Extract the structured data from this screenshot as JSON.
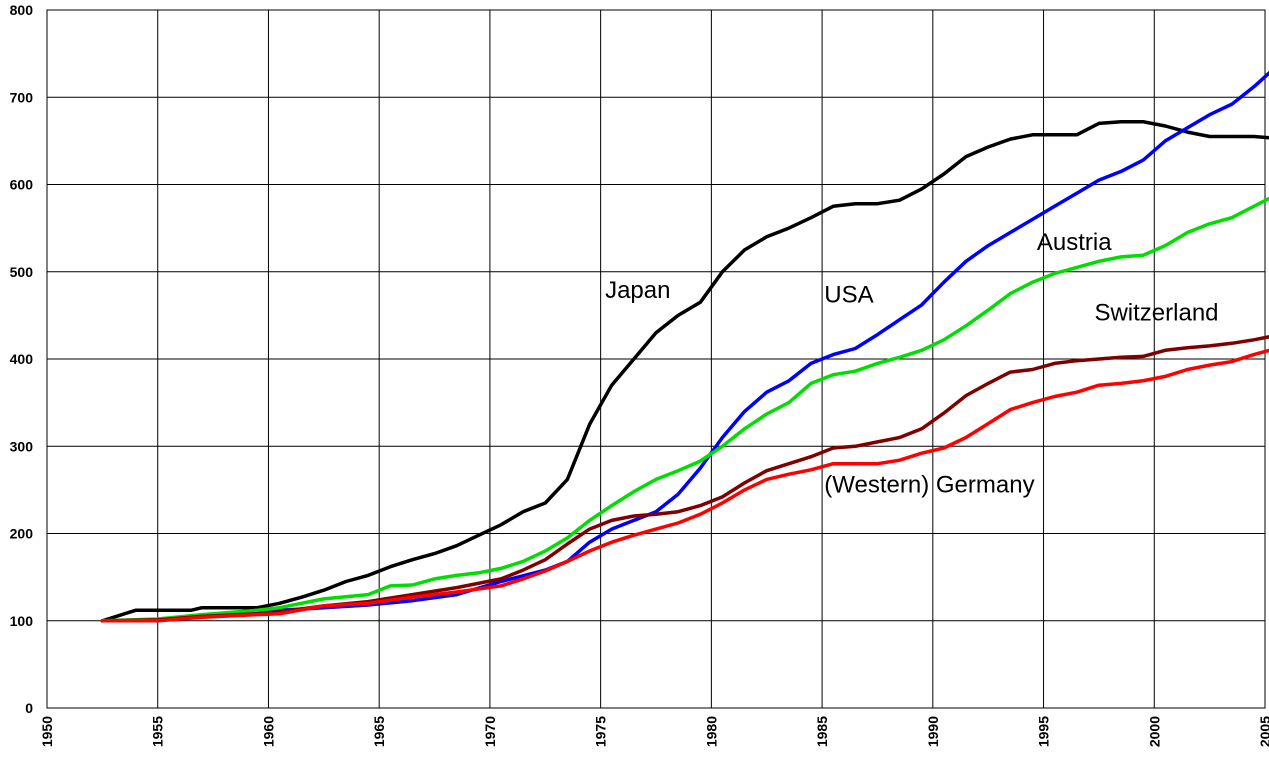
{
  "chart_data": {
    "type": "line",
    "title": "",
    "xlabel": "",
    "ylabel": "",
    "xlim": [
      1950,
      2005
    ],
    "ylim": [
      0,
      800
    ],
    "x_ticks": [
      1950,
      1955,
      1960,
      1965,
      1970,
      1975,
      1980,
      1985,
      1990,
      1995,
      2000,
      2005
    ],
    "y_ticks": [
      0,
      100,
      200,
      300,
      400,
      500,
      600,
      700,
      800
    ],
    "grid": true,
    "legend": "none",
    "series": [
      {
        "name": "Japan",
        "color": "#000000",
        "x": [
          1952.5,
          1954,
          1955,
          1956.5,
          1957,
          1958,
          1959.5,
          1960.5,
          1961.5,
          1962.5,
          1963.5,
          1964.5,
          1965.5,
          1966.5,
          1967.5,
          1968.5,
          1969.5,
          1970.5,
          1971.5,
          1972.5,
          1973.5,
          1974.5,
          1975.5,
          1976.5,
          1977.5,
          1978.5,
          1979.5,
          1980.5,
          1981.5,
          1982.5,
          1983.5,
          1984.5,
          1985.5,
          1986.5,
          1987.5,
          1988.5,
          1989.5,
          1990.5,
          1991.5,
          1992.5,
          1993.5,
          1994.5,
          1995.5,
          1996.5,
          1997.5,
          1998.5,
          1999.5,
          2000.5,
          2001.5,
          2002.5,
          2003.5,
          2004.5,
          2005.5
        ],
        "y": [
          100,
          112,
          112,
          112,
          115,
          115,
          115,
          120,
          127,
          135,
          145,
          152,
          162,
          170,
          177,
          186,
          198,
          210,
          225,
          235,
          262,
          325,
          370,
          400,
          430,
          450,
          465,
          500,
          525,
          540,
          550,
          562,
          575,
          578,
          578,
          582,
          595,
          612,
          632,
          643,
          652,
          657,
          657,
          657,
          670,
          672,
          672,
          667,
          660,
          655,
          655,
          655,
          653
        ]
      },
      {
        "name": "USA",
        "color": "#0000ff",
        "x": [
          1952.5,
          1955,
          1957,
          1959.5,
          1960.5,
          1962.5,
          1964.5,
          1966.5,
          1968.5,
          1970.5,
          1972.5,
          1973.5,
          1974.5,
          1975.5,
          1977.5,
          1978.5,
          1979.5,
          1980.5,
          1981.5,
          1982.5,
          1983.5,
          1984.5,
          1985.5,
          1986.5,
          1987.5,
          1988.5,
          1989.5,
          1990.5,
          1991.5,
          1992.5,
          1993.5,
          1994.5,
          1995.5,
          1996.5,
          1997.5,
          1998.5,
          1999.5,
          2000.5,
          2001.5,
          2002.5,
          2003.5,
          2004.5,
          2005.5
        ],
        "y": [
          100,
          100,
          105,
          110,
          112,
          115,
          118,
          123,
          130,
          145,
          158,
          168,
          190,
          205,
          225,
          245,
          275,
          310,
          340,
          362,
          375,
          395,
          405,
          412,
          428,
          445,
          462,
          488,
          512,
          530,
          545,
          560,
          575,
          590,
          605,
          615,
          628,
          650,
          665,
          680,
          692,
          712,
          735
        ]
      },
      {
        "name": "Austria",
        "color": "#00dd00",
        "x": [
          1952.5,
          1955,
          1957,
          1959.5,
          1960.5,
          1962.5,
          1964.5,
          1965.5,
          1966.5,
          1967.5,
          1968.5,
          1969.5,
          1970.5,
          1971.5,
          1972.5,
          1973.5,
          1974.5,
          1975.5,
          1976.5,
          1977.5,
          1978.5,
          1979.5,
          1980.5,
          1981.5,
          1982.5,
          1983.5,
          1984.5,
          1985.5,
          1986.5,
          1987.5,
          1988.5,
          1989.5,
          1990.5,
          1991.5,
          1992.5,
          1993.5,
          1994.5,
          1995.5,
          1996.5,
          1997.5,
          1998.5,
          1999.5,
          2000.5,
          2001.5,
          2002.5,
          2003.5,
          2004.5,
          2005.5
        ],
        "y": [
          100,
          102,
          107,
          112,
          115,
          125,
          130,
          140,
          141,
          148,
          152,
          155,
          160,
          168,
          180,
          195,
          215,
          232,
          248,
          262,
          272,
          283,
          300,
          320,
          337,
          350,
          372,
          382,
          386,
          395,
          402,
          410,
          422,
          438,
          456,
          475,
          488,
          498,
          505,
          512,
          517,
          519,
          530,
          545,
          555,
          562,
          575,
          588
        ]
      },
      {
        "name": "Switzerland",
        "color": "#800000",
        "x": [
          1952.5,
          1955,
          1957,
          1959.5,
          1960.5,
          1962.5,
          1964.5,
          1966.5,
          1968.5,
          1970.5,
          1971.5,
          1972.5,
          1973.5,
          1974.5,
          1975.5,
          1976.5,
          1977.5,
          1978.5,
          1979.5,
          1980.5,
          1981.5,
          1982.5,
          1983.5,
          1984.5,
          1985.5,
          1986.5,
          1987.5,
          1988.5,
          1989.5,
          1990.5,
          1991.5,
          1992.5,
          1993.5,
          1994.5,
          1995.5,
          1996.5,
          1997.5,
          1998.5,
          1999.5,
          2000.5,
          2001.5,
          2002.5,
          2003.5,
          2004.5,
          2005.5
        ],
        "y": [
          100,
          101,
          105,
          108,
          110,
          117,
          122,
          130,
          138,
          148,
          158,
          170,
          188,
          205,
          215,
          220,
          222,
          225,
          232,
          242,
          258,
          272,
          280,
          288,
          298,
          300,
          305,
          310,
          320,
          338,
          358,
          372,
          385,
          388,
          395,
          398,
          400,
          402,
          403,
          410,
          413,
          415,
          418,
          422,
          427
        ]
      },
      {
        "name": "(Western) Germany",
        "color": "#ff0000",
        "x": [
          1952.5,
          1955,
          1957,
          1959.5,
          1960.5,
          1962.5,
          1964.5,
          1966.5,
          1968.5,
          1970.5,
          1971.5,
          1972.5,
          1973.5,
          1974.5,
          1975.5,
          1976.5,
          1977.5,
          1978.5,
          1979.5,
          1980.5,
          1981.5,
          1982.5,
          1983.5,
          1984.5,
          1985.5,
          1986.5,
          1987.5,
          1988.5,
          1989.5,
          1990.5,
          1991.5,
          1992.5,
          1993.5,
          1994.5,
          1995.5,
          1996.5,
          1997.5,
          1998.5,
          1999.5,
          2000.5,
          2001.5,
          2002.5,
          2003.5,
          2004.5,
          2005.5
        ],
        "y": [
          100,
          100,
          104,
          107,
          108,
          117,
          120,
          127,
          133,
          140,
          148,
          157,
          168,
          180,
          190,
          198,
          205,
          212,
          222,
          235,
          250,
          262,
          268,
          273,
          280,
          280,
          280,
          284,
          292,
          298,
          310,
          326,
          342,
          350,
          357,
          362,
          370,
          372,
          375,
          380,
          388,
          393,
          397,
          405,
          412
        ]
      }
    ],
    "annotations": [
      {
        "text": "Japan",
        "x": 1975.2,
        "y": 470
      },
      {
        "text": "USA",
        "x": 1985.1,
        "y": 465
      },
      {
        "text": "Austria",
        "x": 1994.7,
        "y": 525
      },
      {
        "text": "Switzerland",
        "x": 1997.3,
        "y": 444
      },
      {
        "text": "(Western) Germany",
        "x": 1985.1,
        "y": 247
      }
    ]
  }
}
